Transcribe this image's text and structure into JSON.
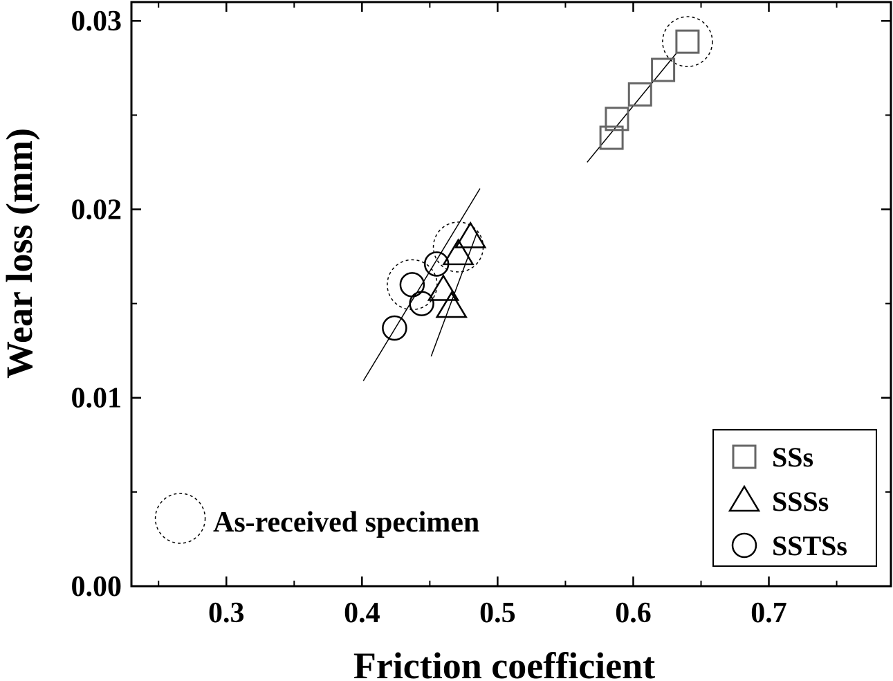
{
  "chart_data": {
    "type": "scatter",
    "title": "",
    "xlabel": "Friction coefficient",
    "ylabel": "Wear loss (mm)",
    "xlim": [
      0.23,
      0.79
    ],
    "ylim": [
      0.0,
      0.031
    ],
    "xticks": [
      0.3,
      0.4,
      0.5,
      0.6,
      0.7
    ],
    "xtick_labels": [
      "0.3",
      "0.4",
      "0.5",
      "0.6",
      "0.7"
    ],
    "yticks": [
      0.0,
      0.01,
      0.02,
      0.03
    ],
    "ytick_labels": [
      "0.00",
      "0.01",
      "0.02",
      "0.03"
    ],
    "grid": false,
    "legend_position": "bottom-right",
    "series": [
      {
        "name": "SSs",
        "marker": "square",
        "color": "#666666",
        "points": [
          {
            "x": 0.584,
            "y": 0.0238
          },
          {
            "x": 0.588,
            "y": 0.0248
          },
          {
            "x": 0.605,
            "y": 0.0261
          },
          {
            "x": 0.622,
            "y": 0.0274
          },
          {
            "x": 0.64,
            "y": 0.0289
          }
        ],
        "fit_line": [
          [
            0.566,
            0.0225
          ],
          [
            0.632,
            0.0283
          ]
        ]
      },
      {
        "name": "SSSs",
        "marker": "triangle",
        "color": "#000000",
        "points": [
          {
            "x": 0.466,
            "y": 0.0148
          },
          {
            "x": 0.46,
            "y": 0.0157
          },
          {
            "x": 0.471,
            "y": 0.0176
          },
          {
            "x": 0.48,
            "y": 0.0185
          }
        ],
        "fit_line": [
          [
            0.451,
            0.0122
          ],
          [
            0.485,
            0.0188
          ]
        ]
      },
      {
        "name": "SSTSs",
        "marker": "circle",
        "color": "#000000",
        "points": [
          {
            "x": 0.424,
            "y": 0.0137
          },
          {
            "x": 0.444,
            "y": 0.015
          },
          {
            "x": 0.437,
            "y": 0.016
          },
          {
            "x": 0.455,
            "y": 0.0171
          }
        ],
        "fit_line": [
          [
            0.401,
            0.0109
          ],
          [
            0.487,
            0.0211
          ]
        ]
      }
    ],
    "highlight_circles": [
      {
        "x": 0.64,
        "y": 0.0289
      },
      {
        "x": 0.471,
        "y": 0.018
      },
      {
        "x": 0.437,
        "y": 0.016
      }
    ],
    "annotation": {
      "text": "As-received specimen",
      "x": 0.266,
      "y": 0.0036
    }
  }
}
